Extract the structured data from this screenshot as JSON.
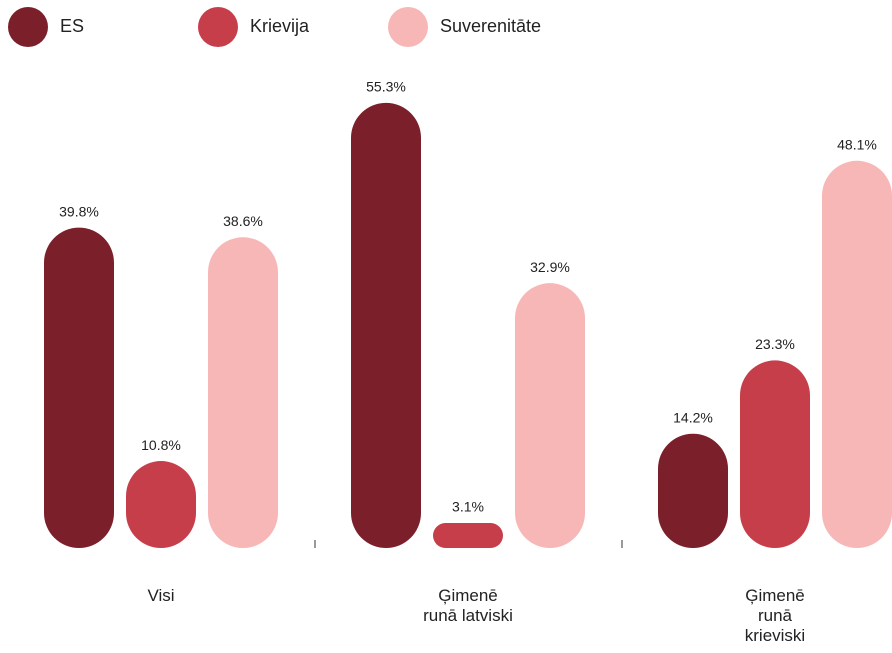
{
  "chart_data": {
    "type": "bar",
    "categories": [
      "Visi",
      "Ģimenē runā latviski",
      "Ģimenē runā krieviski"
    ],
    "series": [
      {
        "name": "ES",
        "color": "#7b1f2a",
        "values": [
          39.8,
          55.3,
          14.2
        ],
        "value_labels": [
          "39.8%",
          "55.3%",
          "14.2%"
        ]
      },
      {
        "name": "Krievija",
        "color": "#c73e4b",
        "values": [
          10.8,
          3.1,
          23.3
        ],
        "value_labels": [
          "10.8%",
          "3.1%",
          "23.3%"
        ]
      },
      {
        "name": "Suverenitāte",
        "color": "#f7b7b7",
        "values": [
          38.6,
          32.9,
          48.1
        ],
        "value_labels": [
          "38.6%",
          "32.9%",
          "48.1%"
        ]
      }
    ],
    "ylim": [
      0,
      60
    ],
    "legend": "top-left"
  }
}
